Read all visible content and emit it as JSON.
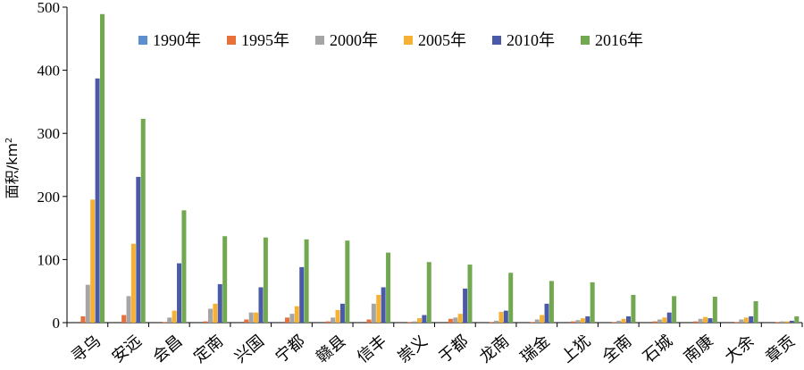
{
  "chart_data": {
    "type": "bar",
    "title": "",
    "xlabel": "",
    "ylabel_main": "面积",
    "ylabel_unit": "/km",
    "ylabel_sup": "2",
    "ylim": [
      0,
      500
    ],
    "yticks": [
      0,
      100,
      200,
      300,
      400,
      500
    ],
    "grid": false,
    "legend_position": "top-right",
    "categories": [
      "寻乌",
      "安远",
      "会昌",
      "定南",
      "兴国",
      "宁都",
      "赣县",
      "信丰",
      "崇义",
      "于都",
      "龙南",
      "瑞金",
      "上犹",
      "全南",
      "石城",
      "南康",
      "大余",
      "章贡"
    ],
    "series": [
      {
        "name": "1990年",
        "color": "#5b8fd0",
        "values": [
          0,
          0,
          0,
          0,
          0,
          0,
          0,
          0,
          0,
          0,
          0,
          0,
          0,
          0,
          0,
          0,
          0,
          0
        ]
      },
      {
        "name": "1995年",
        "color": "#e8703a",
        "values": [
          10,
          12,
          1,
          2,
          5,
          8,
          2,
          5,
          1,
          6,
          1,
          1,
          2,
          1,
          2,
          2,
          1,
          1
        ]
      },
      {
        "name": "2000年",
        "color": "#a5a5a5",
        "values": [
          60,
          42,
          8,
          22,
          16,
          14,
          8,
          30,
          2,
          8,
          3,
          5,
          4,
          3,
          5,
          6,
          5,
          2
        ]
      },
      {
        "name": "2005年",
        "color": "#f5b133",
        "values": [
          195,
          125,
          19,
          30,
          16,
          26,
          20,
          44,
          7,
          14,
          17,
          12,
          7,
          6,
          8,
          9,
          8,
          2
        ]
      },
      {
        "name": "2010年",
        "color": "#4a5aa8",
        "values": [
          387,
          231,
          94,
          61,
          56,
          88,
          30,
          56,
          12,
          54,
          19,
          30,
          10,
          10,
          16,
          7,
          10,
          3
        ]
      },
      {
        "name": "2016年",
        "color": "#72a850",
        "values": [
          489,
          323,
          178,
          137,
          135,
          132,
          130,
          111,
          96,
          92,
          79,
          66,
          64,
          44,
          42,
          41,
          34,
          10
        ]
      }
    ]
  }
}
